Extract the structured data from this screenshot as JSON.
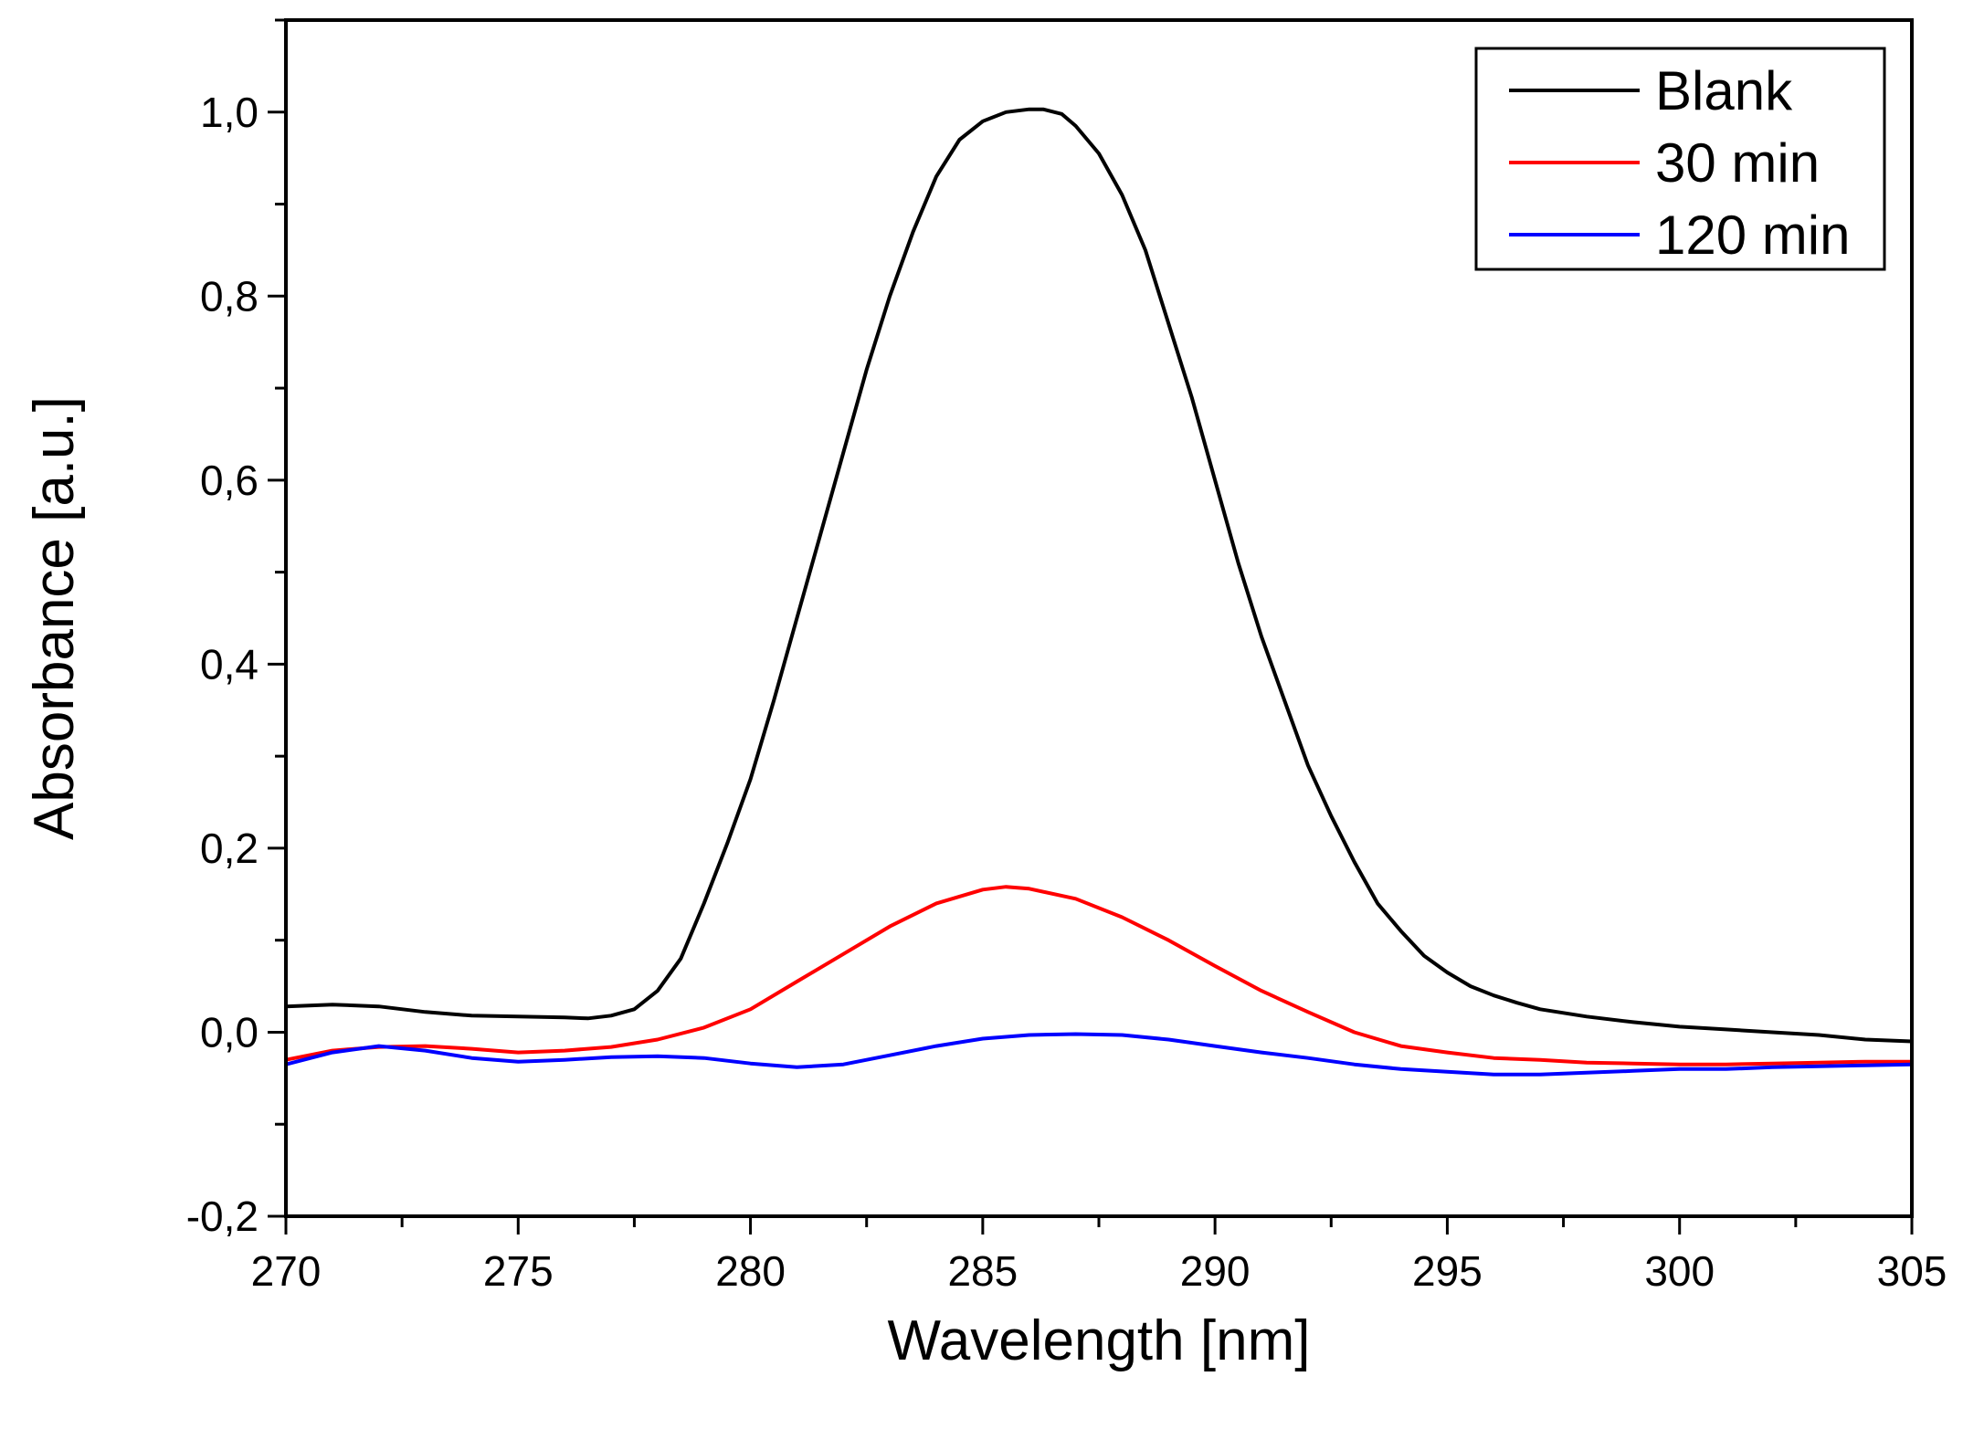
{
  "chart_data": {
    "type": "line",
    "title": "",
    "xlabel": "Wavelength [nm]",
    "ylabel": "Absorbance [a.u.]",
    "xlim": [
      270,
      305
    ],
    "ylim": [
      -0.2,
      1.1
    ],
    "x_ticks": [
      270,
      275,
      280,
      285,
      290,
      295,
      300,
      305
    ],
    "x_tick_labels": [
      "270",
      "275",
      "280",
      "285",
      "290",
      "295",
      "300",
      "305"
    ],
    "y_ticks": [
      -0.2,
      0.0,
      0.2,
      0.4,
      0.6,
      0.8,
      1.0
    ],
    "y_tick_labels": [
      "-0,2",
      "0,0",
      "0,2",
      "0,4",
      "0,6",
      "0,8",
      "1,0"
    ],
    "grid": false,
    "legend_position": "top-right",
    "series": [
      {
        "name": "Blank",
        "color": "#000000",
        "x": [
          270,
          271,
          272,
          273,
          274,
          275,
          276,
          276.5,
          277,
          277.5,
          278,
          278.5,
          279,
          279.5,
          280,
          280.5,
          281,
          281.5,
          282,
          282.5,
          283,
          283.5,
          284,
          284.5,
          285,
          285.5,
          286,
          286.3,
          286.7,
          287,
          287.5,
          288,
          288.5,
          289,
          289.5,
          290,
          290.5,
          291,
          291.5,
          292,
          292.5,
          293,
          293.5,
          294,
          294.5,
          295,
          295.5,
          296,
          296.5,
          297,
          298,
          299,
          300,
          301,
          302,
          303,
          304,
          305
        ],
        "y": [
          0.028,
          0.03,
          0.028,
          0.022,
          0.018,
          0.017,
          0.016,
          0.015,
          0.018,
          0.025,
          0.045,
          0.08,
          0.14,
          0.205,
          0.275,
          0.36,
          0.45,
          0.54,
          0.63,
          0.72,
          0.8,
          0.87,
          0.93,
          0.97,
          0.99,
          1.0,
          1.003,
          1.003,
          0.998,
          0.985,
          0.955,
          0.91,
          0.85,
          0.77,
          0.69,
          0.6,
          0.51,
          0.43,
          0.36,
          0.29,
          0.235,
          0.185,
          0.14,
          0.11,
          0.083,
          0.065,
          0.05,
          0.04,
          0.032,
          0.025,
          0.017,
          0.011,
          0.006,
          0.003,
          0.0,
          -0.003,
          -0.008,
          -0.01
        ]
      },
      {
        "name": "30 min",
        "color": "#ff0000",
        "x": [
          270,
          271,
          272,
          273,
          274,
          275,
          276,
          277,
          278,
          279,
          280,
          281,
          282,
          283,
          284,
          285,
          285.5,
          286,
          287,
          288,
          289,
          290,
          291,
          292,
          293,
          294,
          295,
          296,
          297,
          298,
          299,
          300,
          301,
          302,
          303,
          304,
          305
        ],
        "y": [
          -0.03,
          -0.02,
          -0.016,
          -0.015,
          -0.018,
          -0.022,
          -0.02,
          -0.016,
          -0.008,
          0.005,
          0.025,
          0.055,
          0.085,
          0.115,
          0.14,
          0.155,
          0.158,
          0.156,
          0.145,
          0.125,
          0.1,
          0.072,
          0.045,
          0.022,
          0.0,
          -0.015,
          -0.022,
          -0.028,
          -0.03,
          -0.033,
          -0.034,
          -0.035,
          -0.035,
          -0.034,
          -0.033,
          -0.032,
          -0.032
        ]
      },
      {
        "name": "120 min",
        "color": "#0000ff",
        "x": [
          270,
          271,
          272,
          273,
          274,
          275,
          276,
          277,
          278,
          279,
          280,
          281,
          282,
          283,
          284,
          285,
          286,
          287,
          288,
          289,
          290,
          291,
          292,
          293,
          294,
          295,
          296,
          297,
          298,
          299,
          300,
          301,
          302,
          303,
          304,
          305
        ],
        "y": [
          -0.035,
          -0.022,
          -0.015,
          -0.02,
          -0.028,
          -0.032,
          -0.03,
          -0.027,
          -0.026,
          -0.028,
          -0.034,
          -0.038,
          -0.035,
          -0.025,
          -0.015,
          -0.007,
          -0.003,
          -0.002,
          -0.003,
          -0.008,
          -0.015,
          -0.022,
          -0.028,
          -0.035,
          -0.04,
          -0.043,
          -0.046,
          -0.046,
          -0.044,
          -0.042,
          -0.04,
          -0.04,
          -0.038,
          -0.037,
          -0.036,
          -0.035
        ]
      }
    ]
  }
}
